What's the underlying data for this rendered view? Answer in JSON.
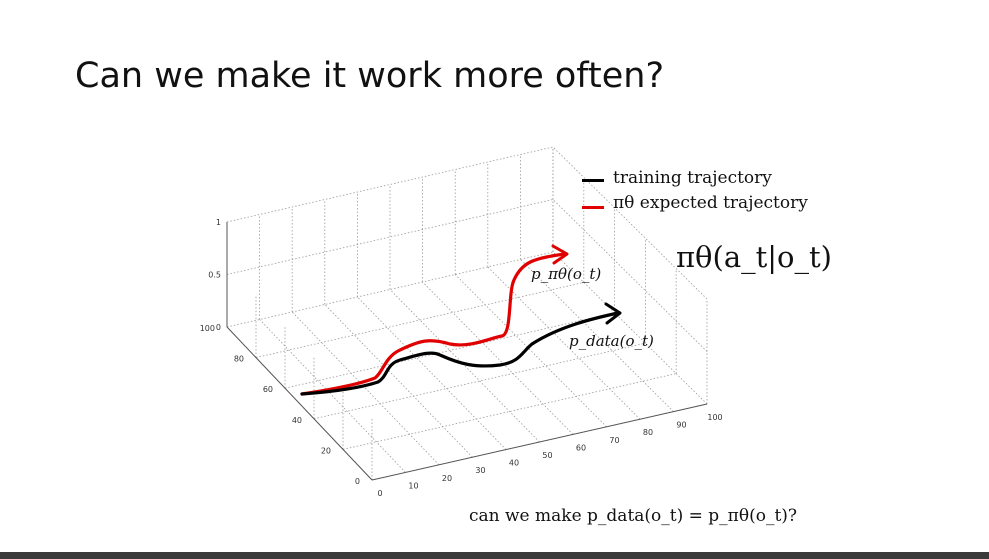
{
  "slide": {
    "title": "Can we make it work more often?",
    "question": "can we make p_data(o_t) = p_πθ(o_t)?"
  },
  "legend": [
    {
      "label": "training trajectory",
      "color": "#000000"
    },
    {
      "label": "πθ expected trajectory",
      "color": "#e00000"
    }
  ],
  "policy_label": "πθ(a_t|o_t)",
  "curve_labels": {
    "expected": "p_πθ(o_t)",
    "data": "p_data(o_t)"
  },
  "axes": {
    "z_ticks": [
      "1",
      "0.5",
      "0"
    ],
    "y_ticks": [
      "100",
      "80",
      "60",
      "40",
      "20",
      "0"
    ],
    "x_ticks": [
      "0",
      "10",
      "20",
      "30",
      "40",
      "50",
      "60",
      "70",
      "80",
      "90",
      "100"
    ]
  }
}
